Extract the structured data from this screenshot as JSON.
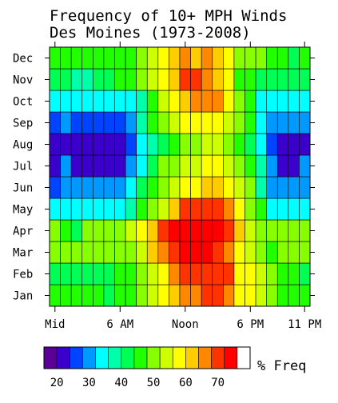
{
  "chart_data": {
    "type": "heatmap",
    "title": "Frequency of 10+ MPH Winds",
    "subtitle": "Des Moines (1973-2008)",
    "months": [
      "Jan",
      "Feb",
      "Mar",
      "Apr",
      "May",
      "Jun",
      "Jul",
      "Aug",
      "Sep",
      "Oct",
      "Nov",
      "Dec"
    ],
    "hours": [
      0,
      1,
      2,
      3,
      4,
      5,
      6,
      7,
      8,
      9,
      10,
      11,
      12,
      13,
      14,
      15,
      16,
      17,
      18,
      19,
      20,
      21,
      22,
      23
    ],
    "x_ticks": [
      {
        "hour": 0,
        "label": "Mid"
      },
      {
        "hour": 6,
        "label": "6 AM"
      },
      {
        "hour": 12,
        "label": "Noon"
      },
      {
        "hour": 18,
        "label": "6 PM"
      },
      {
        "hour": 23,
        "label": "11 PM"
      }
    ],
    "z": [
      [
        46,
        46,
        46,
        46,
        46,
        42,
        46,
        46,
        50,
        54,
        58,
        62,
        66,
        66,
        70,
        70,
        66,
        58,
        58,
        54,
        50,
        46,
        46,
        46
      ],
      [
        42,
        42,
        42,
        42,
        42,
        42,
        46,
        46,
        50,
        54,
        58,
        66,
        70,
        70,
        70,
        70,
        70,
        58,
        58,
        54,
        50,
        46,
        46,
        42
      ],
      [
        50,
        50,
        50,
        50,
        50,
        50,
        50,
        50,
        54,
        62,
        66,
        70,
        74,
        78,
        78,
        70,
        66,
        58,
        54,
        50,
        46,
        50,
        50,
        50
      ],
      [
        50,
        46,
        42,
        50,
        50,
        50,
        50,
        54,
        58,
        62,
        70,
        74,
        78,
        78,
        78,
        74,
        70,
        62,
        54,
        50,
        50,
        50,
        50,
        50
      ],
      [
        34,
        34,
        34,
        34,
        34,
        34,
        34,
        38,
        46,
        50,
        54,
        62,
        70,
        70,
        70,
        70,
        66,
        58,
        50,
        46,
        34,
        34,
        34,
        34
      ],
      [
        26,
        30,
        30,
        30,
        30,
        30,
        30,
        34,
        42,
        46,
        50,
        54,
        58,
        58,
        62,
        62,
        58,
        54,
        50,
        38,
        30,
        30,
        30,
        30
      ],
      [
        22,
        30,
        22,
        22,
        22,
        22,
        22,
        30,
        34,
        42,
        50,
        50,
        54,
        54,
        58,
        58,
        54,
        50,
        46,
        38,
        30,
        22,
        22,
        30
      ],
      [
        22,
        22,
        22,
        22,
        22,
        22,
        22,
        26,
        34,
        38,
        42,
        46,
        50,
        50,
        54,
        54,
        50,
        46,
        42,
        34,
        26,
        22,
        22,
        22
      ],
      [
        26,
        30,
        26,
        26,
        26,
        26,
        26,
        30,
        38,
        46,
        50,
        54,
        58,
        58,
        58,
        58,
        54,
        50,
        46,
        34,
        30,
        30,
        30,
        30
      ],
      [
        34,
        34,
        34,
        34,
        34,
        34,
        34,
        34,
        38,
        46,
        54,
        58,
        62,
        66,
        66,
        66,
        58,
        50,
        46,
        34,
        34,
        34,
        34,
        34
      ],
      [
        42,
        42,
        38,
        38,
        42,
        42,
        46,
        46,
        50,
        54,
        58,
        62,
        70,
        70,
        66,
        62,
        58,
        46,
        46,
        42,
        42,
        42,
        42,
        42
      ],
      [
        46,
        46,
        46,
        46,
        46,
        46,
        46,
        46,
        50,
        54,
        58,
        62,
        66,
        62,
        66,
        62,
        58,
        50,
        50,
        50,
        46,
        46,
        42,
        46
      ]
    ],
    "colorbar": {
      "label": "% Freq",
      "levels": [
        16,
        20,
        24,
        28,
        32,
        36,
        40,
        44,
        48,
        52,
        56,
        60,
        64,
        68,
        72,
        76,
        80
      ],
      "colors": [
        "#5a0099",
        "#3c00cc",
        "#0044ff",
        "#0099ff",
        "#00ffff",
        "#00ffaa",
        "#00ff55",
        "#22ff00",
        "#88ff00",
        "#ccff00",
        "#ffff00",
        "#ffcc00",
        "#ff8800",
        "#ff3300",
        "#ff0000"
      ],
      "ticks": [
        20,
        30,
        40,
        50,
        60,
        70
      ],
      "tick_labels": [
        "20",
        "30",
        "40",
        "50",
        "60",
        "70"
      ]
    }
  }
}
